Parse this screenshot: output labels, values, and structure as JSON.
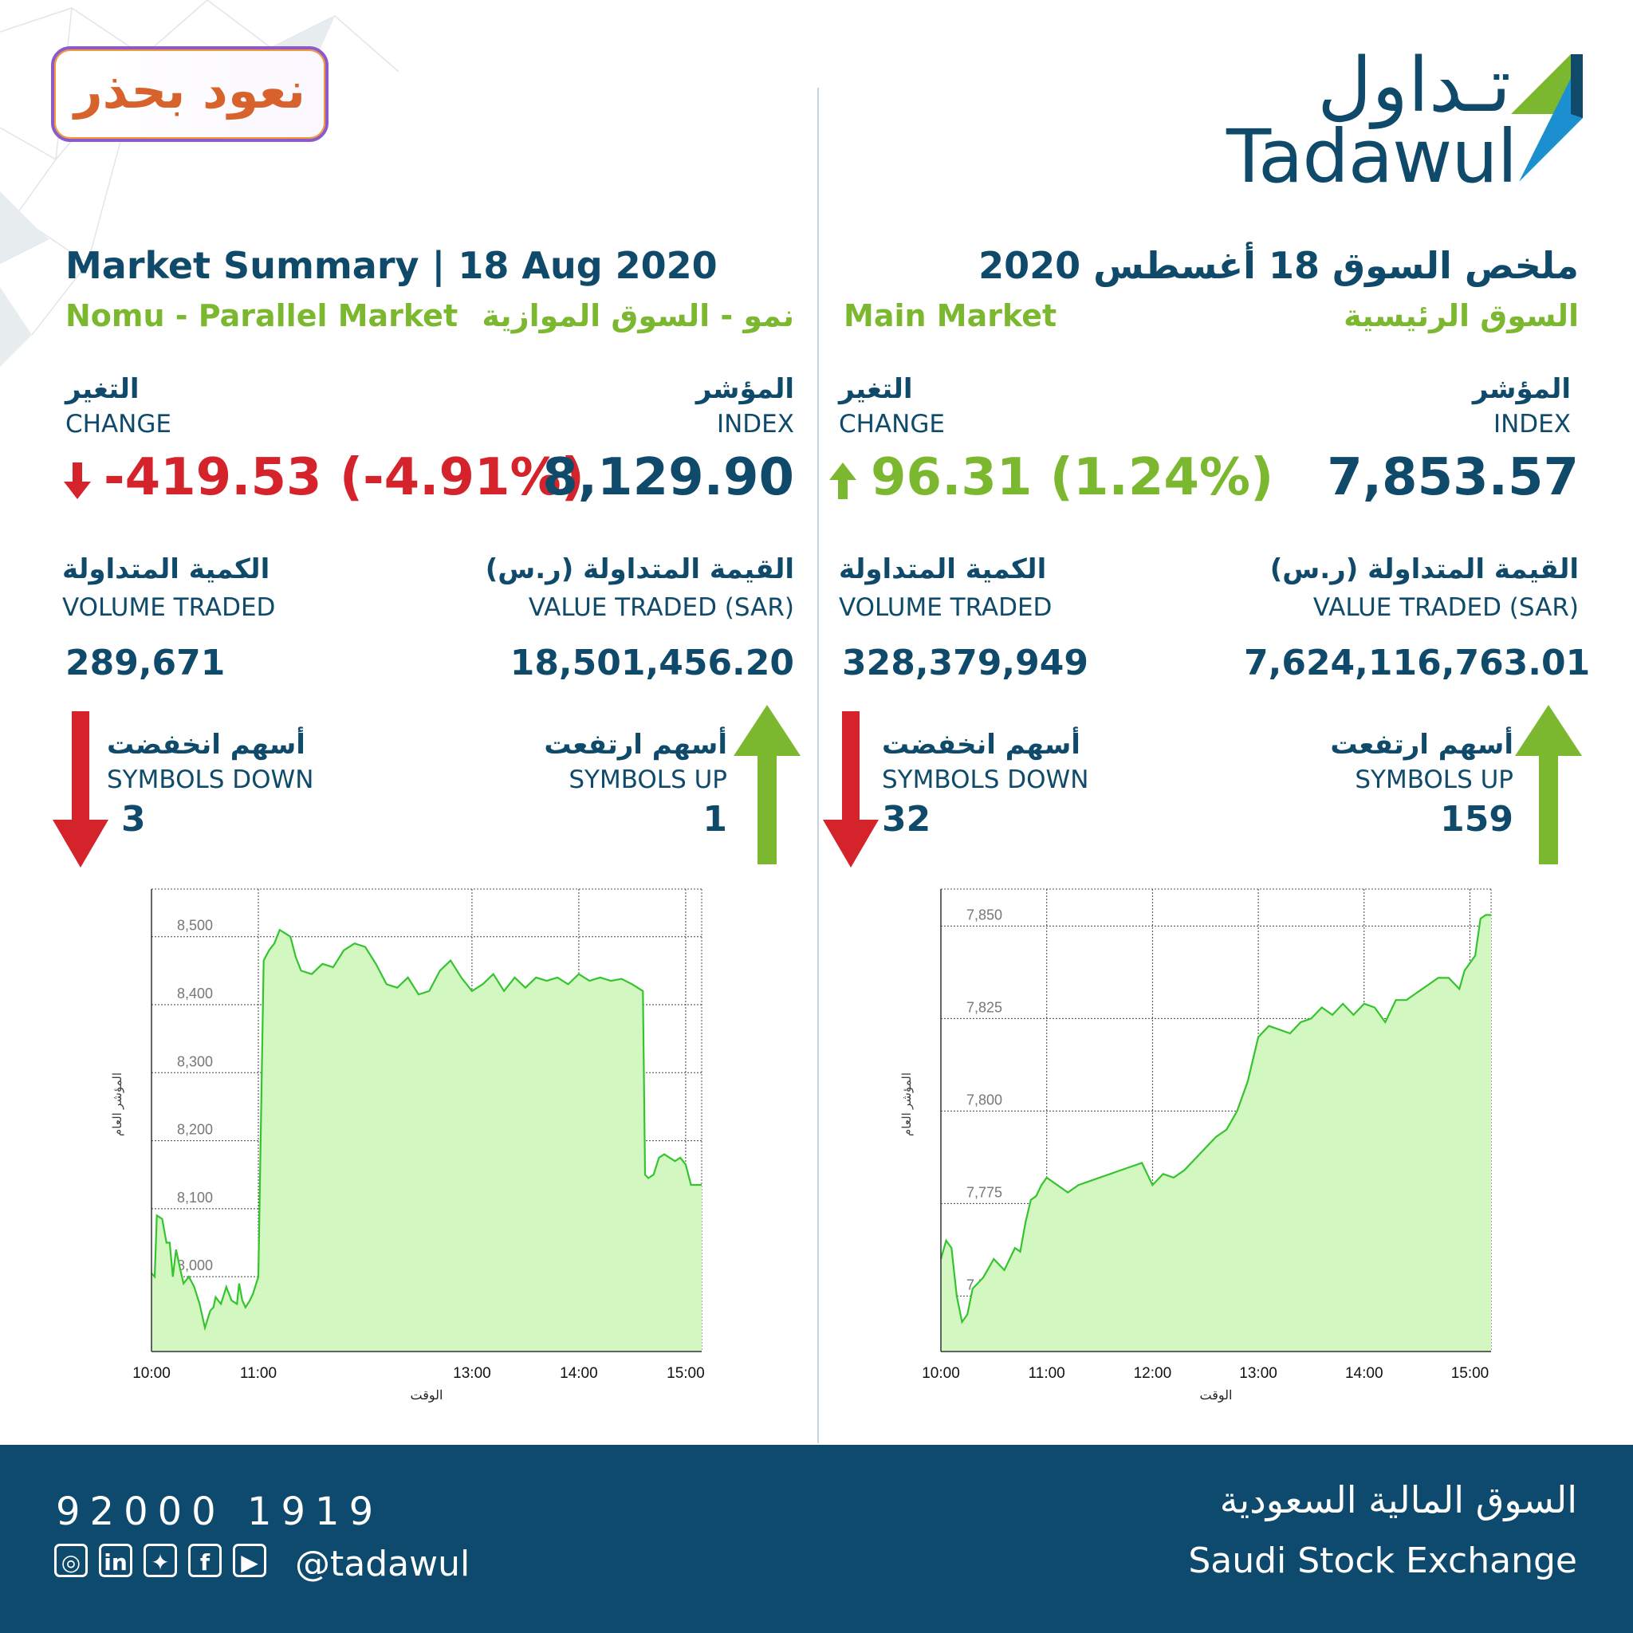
{
  "badge_text": "نعود بحذر",
  "logo": {
    "ar": "تـداول",
    "en": "Tadawul"
  },
  "nomu": {
    "heading": "Market Summary | 18 Aug 2020",
    "market_en": "Nomu - Parallel Market",
    "market_ar": "نمو - السوق الموازية",
    "change_ar": "التغير",
    "change_en": "CHANGE",
    "change_value": "-419.53 (-4.91%)",
    "index_ar": "المؤشر",
    "index_en": "INDEX",
    "index_value": "8,129.90",
    "volume_ar": "الكمية المتداولة",
    "volume_en": "VOLUME TRADED",
    "volume_value": "289,671",
    "value_ar": "القيمة المتداولة (ر.س)",
    "value_en": "VALUE TRADED (SAR)",
    "value_value": "18,501,456.20",
    "down_ar": "أسهم انخفضت",
    "down_en": "SYMBOLS DOWN",
    "down_value": "3",
    "up_ar": "أسهم ارتفعت",
    "up_en": "SYMBOLS UP",
    "up_value": "1"
  },
  "main": {
    "heading": "ملخص السوق  18 أغسطس 2020",
    "market_en": "Main Market",
    "market_ar": "السوق الرئيسية",
    "change_ar": "التغير",
    "change_en": "CHANGE",
    "change_value": "96.31 (1.24%)",
    "index_ar": "المؤشر",
    "index_en": "INDEX",
    "index_value": "7,853.57",
    "volume_ar": "الكمية المتداولة",
    "volume_en": "VOLUME TRADED",
    "volume_value": "328,379,949",
    "value_ar": "القيمة المتداولة (ر.س)",
    "value_en": "VALUE TRADED (SAR)",
    "value_value": "7,624,116,763.01",
    "down_ar": "أسهم انخفضت",
    "down_en": "SYMBOLS DOWN",
    "down_value": "32",
    "up_ar": "أسهم ارتفعت",
    "up_en": "SYMBOLS UP",
    "up_value": "159"
  },
  "footer": {
    "phone": "92000 1919",
    "handle": "@tadawul",
    "sse_ar": "السوق المالية السعودية",
    "sse_en": "Saudi Stock Exchange",
    "social_icons": [
      "instagram-icon",
      "linkedin-icon",
      "twitter-icon",
      "facebook-icon",
      "youtube-icon"
    ]
  },
  "colors": {
    "navy": "#0f4a6b",
    "green": "#7cb82f",
    "red": "#d4232b",
    "line": "#35c42f",
    "fill": "#d3f7c0"
  },
  "chart_data": [
    {
      "type": "area",
      "market": "Nomu",
      "xlabel": "الوقت",
      "ylabel": "المؤشر العام",
      "xlim": [
        10.0,
        15.15
      ],
      "ylim": [
        7890,
        8570
      ],
      "yticks": [
        8000,
        8100,
        8200,
        8300,
        8400,
        8500
      ],
      "ytick_labels": [
        "8,000",
        "8,100",
        "8,200",
        "8,300",
        "8,400",
        "8,500"
      ],
      "xticks": [
        10,
        11,
        13,
        14,
        15
      ],
      "xtick_labels": [
        "10:00",
        "11:00",
        "13:00",
        "14:00",
        "15:00"
      ],
      "grid": true,
      "x": [
        10.0,
        10.03,
        10.05,
        10.1,
        10.14,
        10.17,
        10.2,
        10.23,
        10.27,
        10.3,
        10.35,
        10.4,
        10.45,
        10.5,
        10.55,
        10.58,
        10.6,
        10.65,
        10.7,
        10.75,
        10.8,
        10.82,
        10.85,
        10.88,
        10.9,
        10.92,
        10.95,
        11.0,
        11.05,
        11.1,
        11.15,
        11.2,
        11.25,
        11.3,
        11.35,
        11.4,
        11.5,
        11.6,
        11.7,
        11.8,
        11.9,
        12.0,
        12.1,
        12.2,
        12.3,
        12.4,
        12.5,
        12.6,
        12.7,
        12.8,
        12.9,
        13.0,
        13.1,
        13.2,
        13.3,
        13.4,
        13.5,
        13.6,
        13.7,
        13.8,
        13.9,
        14.0,
        14.1,
        14.2,
        14.3,
        14.4,
        14.5,
        14.6,
        14.62,
        14.65,
        14.7,
        14.75,
        14.8,
        14.85,
        14.9,
        14.95,
        15.0,
        15.05,
        15.1,
        15.15
      ],
      "y": [
        8005,
        8000,
        8090,
        8085,
        8050,
        8050,
        8000,
        8040,
        8010,
        7990,
        8000,
        7985,
        7960,
        7925,
        7950,
        7955,
        7970,
        7960,
        7985,
        7965,
        7960,
        7990,
        7965,
        7955,
        7960,
        7965,
        7975,
        8000,
        8465,
        8480,
        8490,
        8510,
        8505,
        8500,
        8470,
        8450,
        8445,
        8460,
        8455,
        8480,
        8490,
        8485,
        8460,
        8430,
        8425,
        8440,
        8415,
        8420,
        8450,
        8465,
        8440,
        8420,
        8430,
        8445,
        8420,
        8440,
        8425,
        8440,
        8435,
        8440,
        8430,
        8445,
        8435,
        8440,
        8435,
        8438,
        8430,
        8420,
        8150,
        8145,
        8150,
        8175,
        8180,
        8175,
        8170,
        8175,
        8165,
        8135,
        8135,
        8135
      ]
    },
    {
      "type": "area",
      "market": "Main",
      "xlabel": "الوقت",
      "ylabel": "المؤشر العام",
      "xlim": [
        10.0,
        15.2
      ],
      "ylim": [
        7735,
        7860
      ],
      "yticks": [
        7750,
        7775,
        7800,
        7825,
        7850
      ],
      "ytick_labels": [
        "7,750",
        "7,775",
        "7,800",
        "7,825",
        "7,850"
      ],
      "xticks": [
        10,
        11,
        12,
        13,
        14,
        15
      ],
      "xtick_labels": [
        "10:00",
        "11:00",
        "12:00",
        "13:00",
        "14:00",
        "15:00"
      ],
      "grid": true,
      "x": [
        10.0,
        10.05,
        10.1,
        10.15,
        10.2,
        10.25,
        10.3,
        10.4,
        10.5,
        10.6,
        10.7,
        10.75,
        10.8,
        10.85,
        10.9,
        10.95,
        11.0,
        11.1,
        11.2,
        11.3,
        11.4,
        11.5,
        11.6,
        11.7,
        11.8,
        11.9,
        12.0,
        12.1,
        12.2,
        12.3,
        12.4,
        12.5,
        12.6,
        12.7,
        12.8,
        12.9,
        13.0,
        13.1,
        13.2,
        13.3,
        13.4,
        13.5,
        13.6,
        13.7,
        13.8,
        13.9,
        14.0,
        14.1,
        14.2,
        14.3,
        14.4,
        14.5,
        14.6,
        14.7,
        14.8,
        14.9,
        14.95,
        15.0,
        15.05,
        15.1,
        15.15,
        15.2
      ],
      "y": [
        7760,
        7765,
        7763,
        7750,
        7743,
        7745,
        7752,
        7755,
        7760,
        7757,
        7763,
        7762,
        7770,
        7776,
        7777,
        7780,
        7782,
        7780,
        7778,
        7780,
        7781,
        7782,
        7783,
        7784,
        7785,
        7786,
        7780,
        7783,
        7782,
        7784,
        7787,
        7790,
        7793,
        7795,
        7800,
        7808,
        7820,
        7823,
        7822,
        7821,
        7824,
        7825,
        7828,
        7826,
        7829,
        7826,
        7829,
        7828,
        7824,
        7830,
        7830,
        7832,
        7834,
        7836,
        7836,
        7833,
        7838,
        7840,
        7842,
        7852,
        7853,
        7853
      ]
    }
  ]
}
